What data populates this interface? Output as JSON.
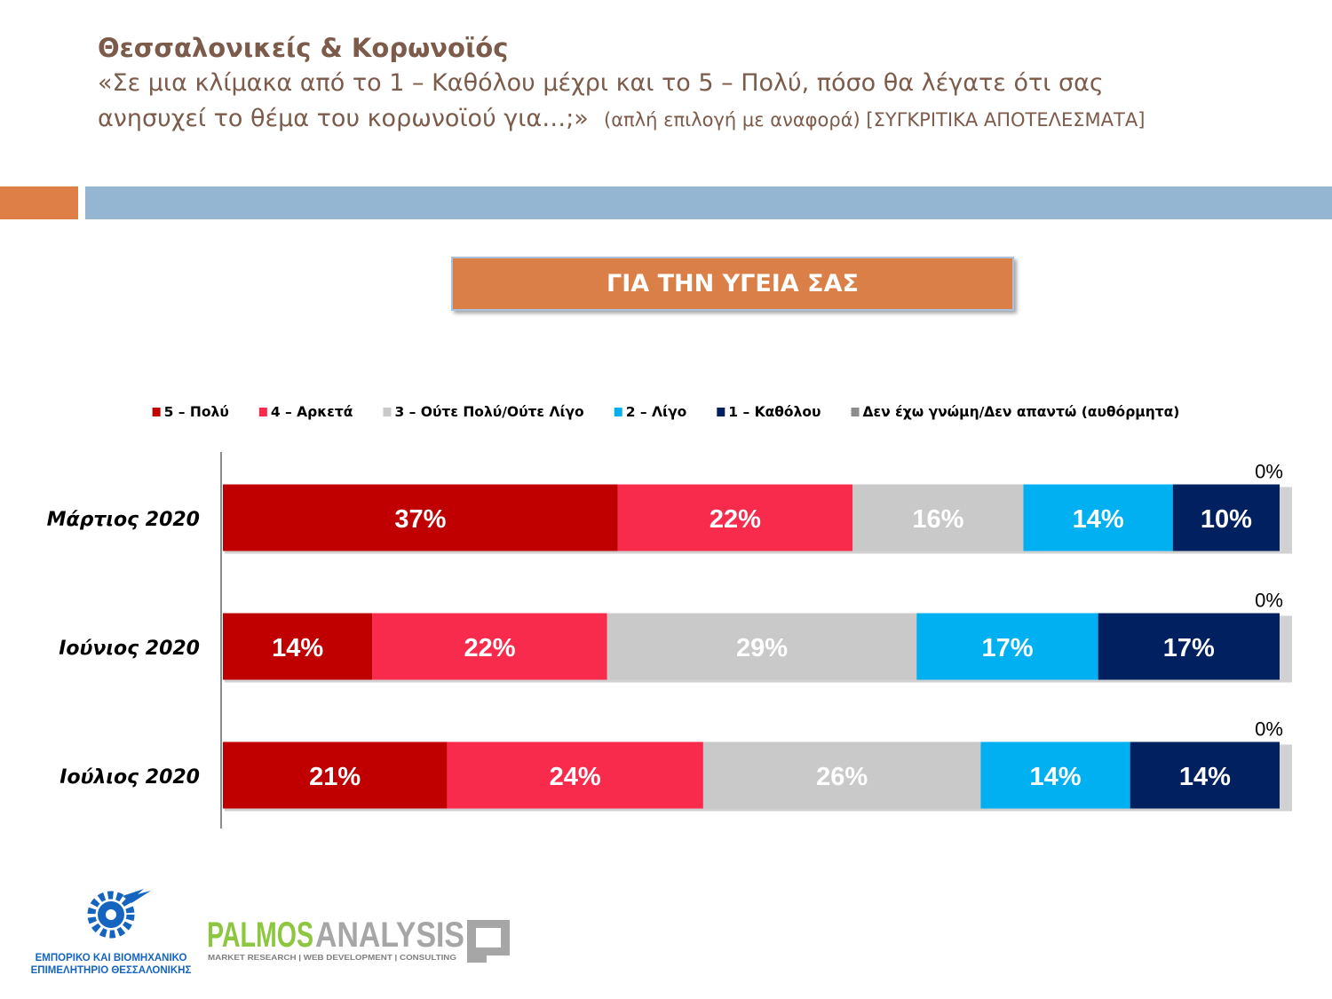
{
  "header": {
    "title": "Θεσσαλονικείς & Κορωνοϊός",
    "question_line1": "«Σε μια κλίμακα από το 1 – Καθόλου μέχρι και το 5 – Πολύ, πόσο θα λέγατε ότι σας",
    "question_line2": "ανησυχεί το θέμα του κορωνοϊού για…;»",
    "question_note": "(απλή επιλογή με αναφορά) [ΣΥΓΚΡΙΤΙΚΑ ΑΠΟΤΕΛΕΣΜΑΤΑ]"
  },
  "topic_label": "ΓΙΑ ΤΗΝ ΥΓΕΙΑ ΣΑΣ",
  "colors": {
    "series": [
      "#c00000",
      "#f82b4c",
      "#c9c9c9",
      "#00b0f0",
      "#002060",
      "#8c8c8c"
    ],
    "accent_orange": "#dd7f46",
    "accent_blue": "#95b6d3",
    "title_brown": "#7c5b4a"
  },
  "chart_data": {
    "type": "bar",
    "orientation": "horizontal",
    "stacked": true,
    "categories": [
      "Μάρτιος 2020",
      "Ιούνιος 2020",
      "Ιούλιος 2020"
    ],
    "series": [
      {
        "name": "5 – Πολύ",
        "values": [
          37,
          14,
          21
        ]
      },
      {
        "name": "4 – Αρκετά",
        "values": [
          22,
          22,
          24
        ]
      },
      {
        "name": "3 – Ούτε Πολύ/Ούτε Λίγο",
        "values": [
          16,
          29,
          26
        ]
      },
      {
        "name": "2 – Λίγο",
        "values": [
          14,
          17,
          14
        ]
      },
      {
        "name": "1 – Καθόλου",
        "values": [
          10,
          17,
          14
        ]
      },
      {
        "name": "Δεν έχω γνώμη/Δεν απαντώ (αυθόρμητα)",
        "values": [
          0,
          0,
          0
        ]
      }
    ],
    "value_suffix": "%",
    "xlim": [
      0,
      100
    ],
    "legend_position": "top",
    "grid": false
  },
  "logos": {
    "chamber_line1": "ΕΜΠΟΡΙΚΟ ΚΑΙ ΒΙΟΜΗΧΑΝΙΚΟ",
    "chamber_line2": "ΕΠΙΜΕΛΗΤΗΡΙΟ ΘΕΣΣΑΛΟΝΙΚΗΣ",
    "palmos_part1": "PALMOS",
    "palmos_part2": "ANALYSIS",
    "palmos_tagline": "MARKET RESEARCH | WEB DEVELOPMENT | CONSULTING"
  }
}
